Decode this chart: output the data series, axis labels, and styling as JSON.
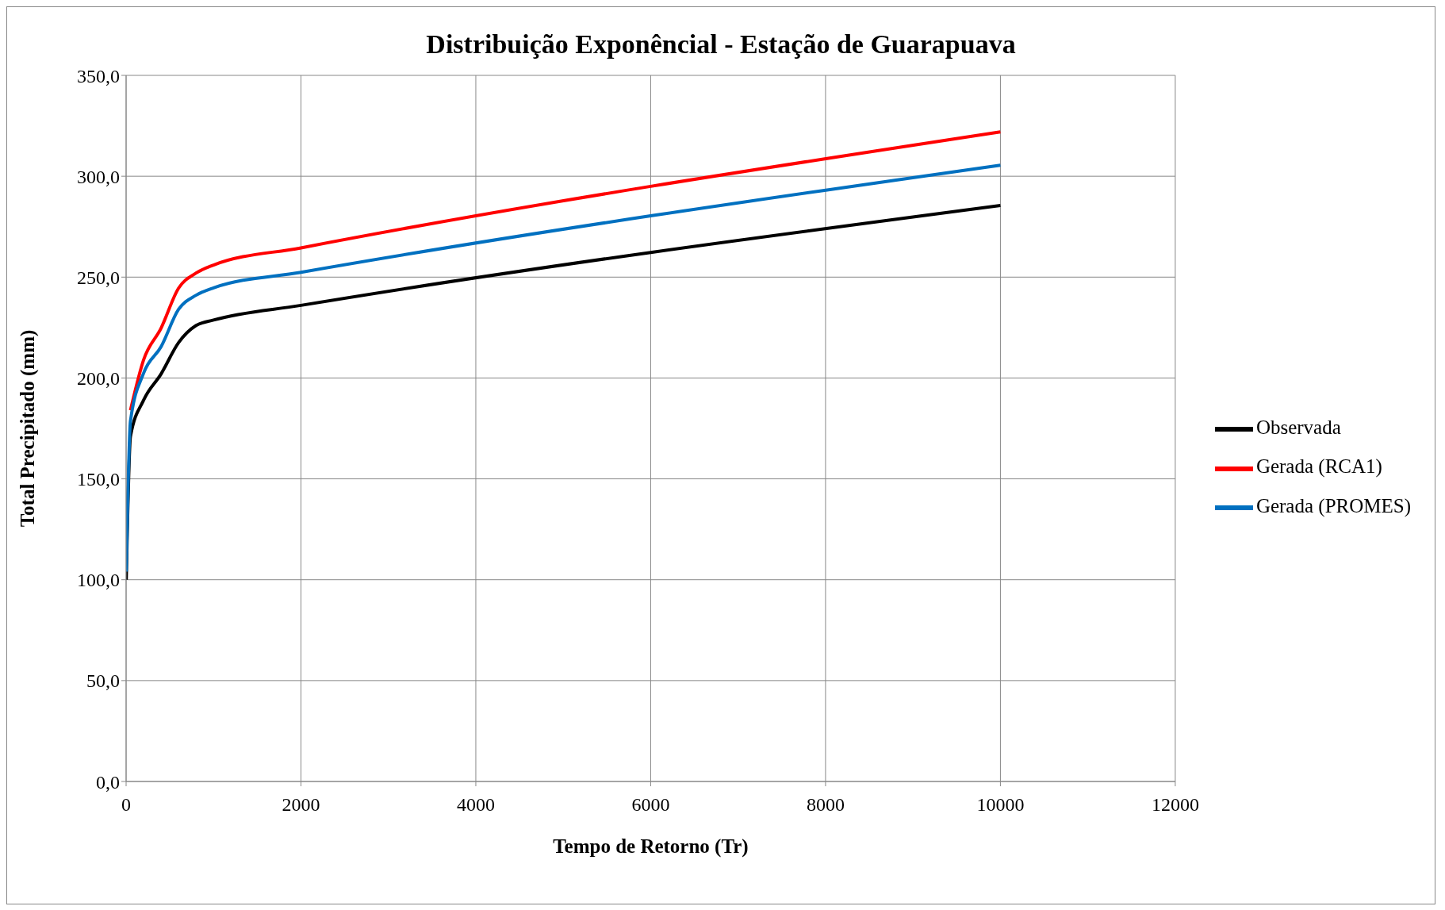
{
  "chart_data": {
    "type": "line",
    "title": "Distribuição Exponêncial - Estação de Guarapuava",
    "xlabel": "Tempo de Retorno (Tr)",
    "ylabel": "Total Precipitado (mm)",
    "x": [
      2,
      50,
      200,
      400,
      600,
      800,
      1000,
      2000,
      10000
    ],
    "series": [
      {
        "name": "Observada",
        "color": "#000000",
        "values": [
          100,
          171,
          189,
          202,
          217.5,
          226,
          228.7,
          236,
          285.5
        ]
      },
      {
        "name": "Gerada (RCA1)",
        "color": "#ff0000",
        "values": [
          null,
          184,
          209,
          224.7,
          244.5,
          252,
          256,
          264.5,
          322
        ]
      },
      {
        "name": "Gerada (PROMES)",
        "color": "#0070c0",
        "values": [
          104,
          178.7,
          202.4,
          215.5,
          234,
          241,
          244.7,
          252.4,
          305.5
        ]
      }
    ],
    "xlim": [
      0,
      12000
    ],
    "xticks": [
      0,
      2000,
      4000,
      6000,
      8000,
      10000,
      12000
    ],
    "ylim": [
      0,
      350
    ],
    "yticks": [
      {
        "value": 0,
        "label": "0,0"
      },
      {
        "value": 50,
        "label": "50,0"
      },
      {
        "value": 100,
        "label": "100,0"
      },
      {
        "value": 150,
        "label": "150,0"
      },
      {
        "value": 200,
        "label": "200,0"
      },
      {
        "value": 250,
        "label": "250,0"
      },
      {
        "value": 300,
        "label": "300,0"
      },
      {
        "value": 350,
        "label": "350,0"
      }
    ],
    "grid": true,
    "legend": "right",
    "marker": "none",
    "line_style": "solid"
  }
}
